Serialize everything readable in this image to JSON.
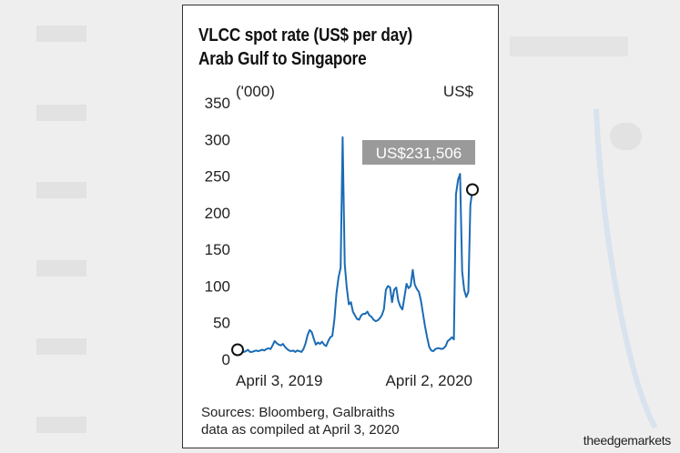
{
  "colors": {
    "line": "#1a6bb5",
    "callout_bg": "#9a9a9a",
    "callout_text": "#ffffff"
  },
  "card": {
    "title_line1": "VLCC spot rate (US$ per day)",
    "title_line2": "Arab Gulf to Singapore",
    "source_line1": "Sources: Bloomberg, Galbraiths",
    "source_line2": "data as compiled at April 3, 2020"
  },
  "watermark": "theedgemarkets",
  "chart_data": {
    "type": "line",
    "title": "VLCC spot rate (US$ per day) Arab Gulf to Singapore",
    "y_unit_left": "('000)",
    "y_unit_right": "US$",
    "ylim": [
      0,
      350
    ],
    "y_ticks": [
      0,
      50,
      100,
      150,
      200,
      250,
      300,
      350
    ],
    "x_tick_labels": [
      "April 3, 2019",
      "April 2, 2020"
    ],
    "grid": false,
    "callout": "US$231,506",
    "series": [
      {
        "values": [
          13,
          14,
          11,
          10,
          11,
          13,
          10,
          10,
          11,
          12,
          11,
          12,
          13,
          12,
          14,
          15,
          14,
          19,
          25,
          22,
          20,
          19,
          21,
          17,
          14,
          12,
          11,
          12,
          10,
          12,
          11,
          10,
          14,
          22,
          33,
          40,
          37,
          28,
          20,
          23,
          21,
          24,
          20,
          18,
          25,
          30,
          32,
          55,
          90,
          112,
          125,
          303,
          130,
          98,
          75,
          78,
          65,
          60,
          55,
          54,
          60,
          62,
          62,
          65,
          60,
          58,
          54,
          52,
          53,
          56,
          60,
          68,
          95,
          100,
          98,
          78,
          95,
          98,
          80,
          72,
          68,
          85,
          103,
          97,
          100,
          122,
          102,
          96,
          92,
          80,
          62,
          45,
          30,
          17,
          12,
          11,
          14,
          15,
          15,
          14,
          15,
          18,
          25,
          27,
          30,
          27,
          225,
          245,
          253,
          120,
          95,
          85,
          92,
          210,
          231.5
        ]
      }
    ]
  }
}
